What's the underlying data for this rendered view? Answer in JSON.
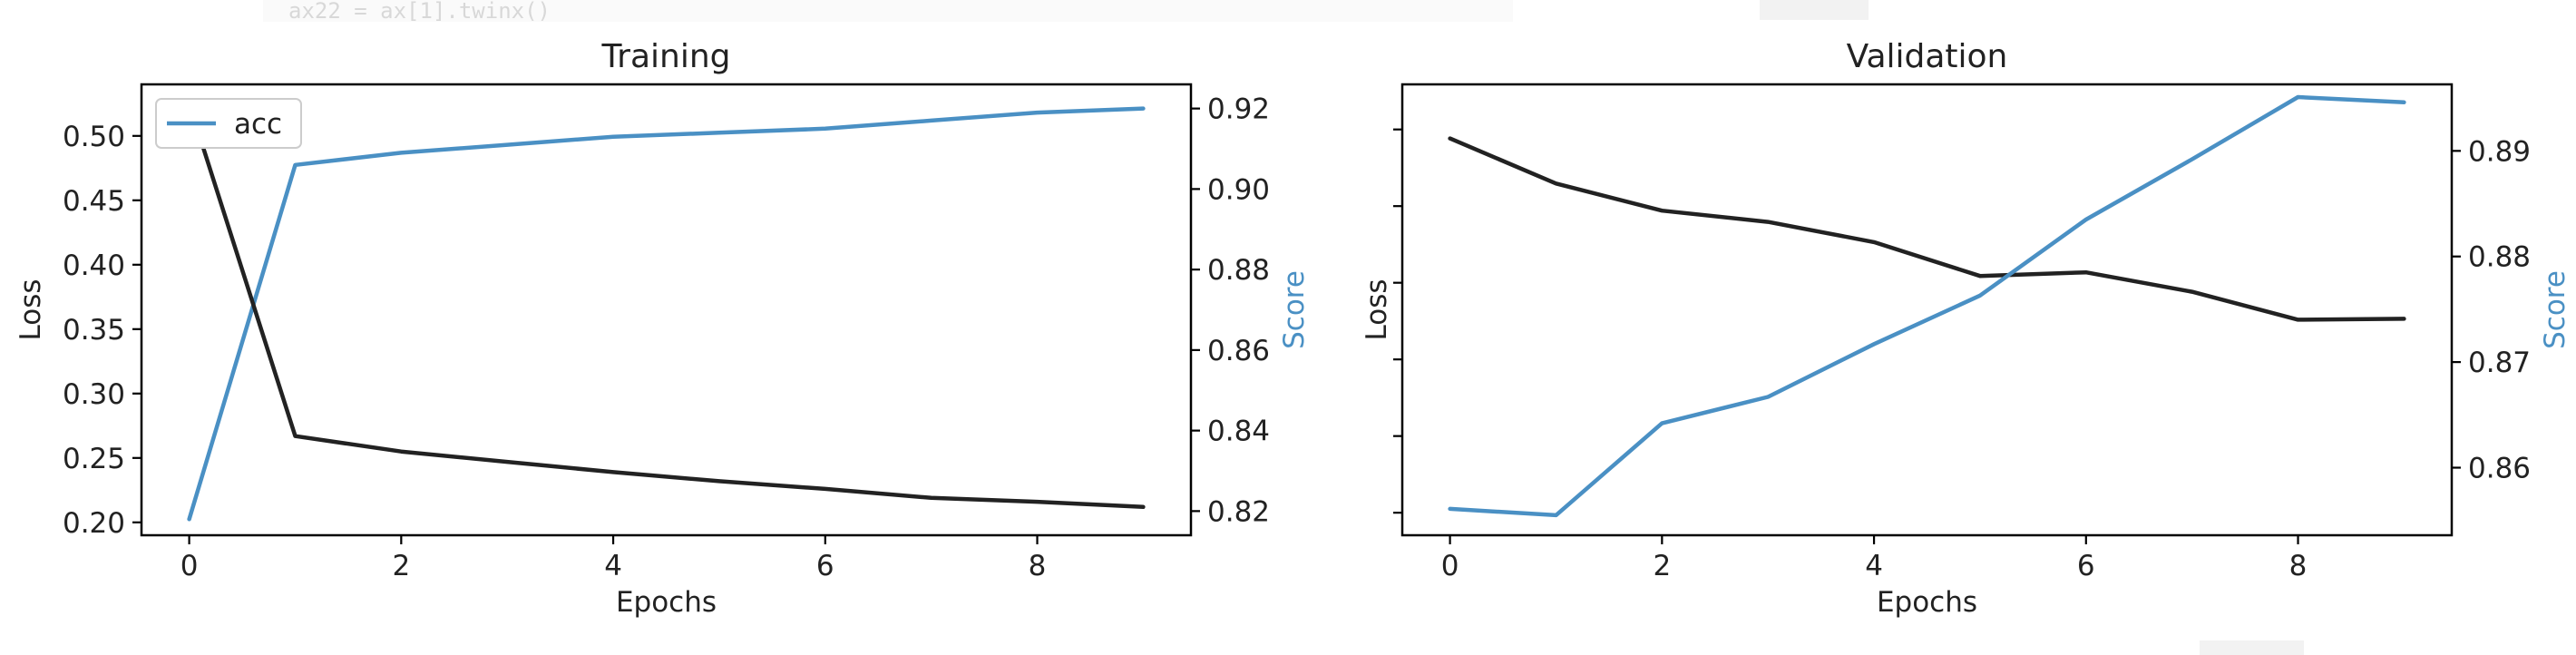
{
  "code_snippet": "ax22 = ax[1].twinx()",
  "colors": {
    "loss": "#222222",
    "score": "#4a90c4",
    "axes": "#000000",
    "background": "#ffffff"
  },
  "chart_data": [
    {
      "type": "line",
      "title": "Training",
      "xlabel": "Epochs",
      "ylabel_left": "Loss",
      "ylabel_right": "Score",
      "x": [
        0,
        1,
        2,
        3,
        4,
        5,
        6,
        7,
        8,
        9
      ],
      "xticks": [
        0,
        2,
        4,
        6,
        8
      ],
      "xlim": [
        -0.45,
        9.45
      ],
      "ylim_left": [
        0.19,
        0.54
      ],
      "yticks_left": [
        0.2,
        0.25,
        0.3,
        0.35,
        0.4,
        0.45,
        0.5
      ],
      "ytick_labels_left": [
        "0.20",
        "0.25",
        "0.30",
        "0.35",
        "0.40",
        "0.45",
        "0.50"
      ],
      "ylim_right": [
        0.814,
        0.926
      ],
      "yticks_right": [
        0.82,
        0.84,
        0.86,
        0.88,
        0.9,
        0.92
      ],
      "ytick_labels_right": [
        "0.82",
        "0.84",
        "0.86",
        "0.88",
        "0.90",
        "0.92"
      ],
      "legend": {
        "entries": [
          "acc"
        ],
        "placement": "upper-left"
      },
      "series": [
        {
          "name": "acc",
          "axis": "right",
          "color": "#4a90c4",
          "values": [
            0.818,
            0.906,
            0.909,
            0.911,
            0.913,
            0.914,
            0.915,
            0.917,
            0.919,
            0.92
          ]
        },
        {
          "axis": "left",
          "color": "#222222",
          "values": [
            0.525,
            0.267,
            0.255,
            0.247,
            0.239,
            0.232,
            0.226,
            0.219,
            0.216,
            0.212
          ]
        }
      ]
    },
    {
      "type": "line",
      "title": "Validation",
      "xlabel": "Epochs",
      "ylabel_left": "Loss",
      "ylabel_right": "Score",
      "x": [
        0,
        1,
        2,
        3,
        4,
        5,
        6,
        7,
        8,
        9
      ],
      "xticks": [
        0,
        2,
        4,
        6,
        8
      ],
      "xlim": [
        -0.45,
        9.45
      ],
      "ylim_left": [
        0,
        1
      ],
      "yticks_left": [
        0.05,
        0.22,
        0.39,
        0.56,
        0.73,
        0.9
      ],
      "ytick_labels_left": [],
      "ylim_right": [
        0.8536,
        0.8963
      ],
      "yticks_right": [
        0.86,
        0.87,
        0.88,
        0.89
      ],
      "ytick_labels_right": [
        "0.86",
        "0.87",
        "0.88",
        "0.89"
      ],
      "series": [
        {
          "axis": "left",
          "color": "#222222",
          "values": [
            0.88,
            0.78,
            0.72,
            0.695,
            0.65,
            0.575,
            0.583,
            0.54,
            0.478,
            0.48
          ]
        },
        {
          "axis": "right",
          "color": "#4a90c4",
          "values": [
            0.8561,
            0.8555,
            0.8642,
            0.8667,
            0.8717,
            0.8763,
            0.8835,
            0.8892,
            0.8951,
            0.8946
          ]
        }
      ]
    }
  ]
}
